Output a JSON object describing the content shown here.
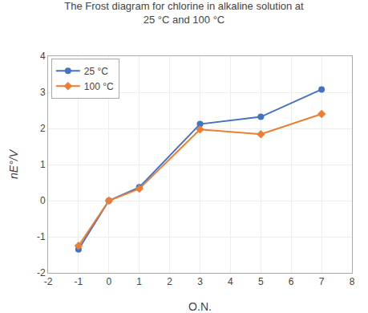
{
  "chart_data": {
    "type": "line",
    "title": "The Frost diagram for chlorine in alkaline solution at\n25 °C and 100 °C",
    "x_label": "O.N.",
    "y_label": "nE°/V",
    "x": [
      -1,
      0,
      1,
      3,
      5,
      7
    ],
    "series": [
      {
        "name": "25 °C",
        "color": "#4472c4",
        "marker": "circle",
        "values": [
          -1.35,
          0.0,
          0.37,
          2.12,
          2.32,
          3.08
        ]
      },
      {
        "name": "100 °C",
        "color": "#ed7d31",
        "marker": "diamond",
        "values": [
          -1.25,
          0.0,
          0.33,
          1.97,
          1.84,
          2.4
        ]
      }
    ],
    "xlim": [
      -2,
      8
    ],
    "ylim": [
      -2,
      4
    ],
    "xticks": [
      -2,
      -1,
      0,
      1,
      2,
      3,
      4,
      5,
      6,
      7,
      8
    ],
    "yticks": [
      -2,
      -1,
      0,
      1,
      2,
      3,
      4
    ],
    "grid": true,
    "legend": "upper left"
  }
}
